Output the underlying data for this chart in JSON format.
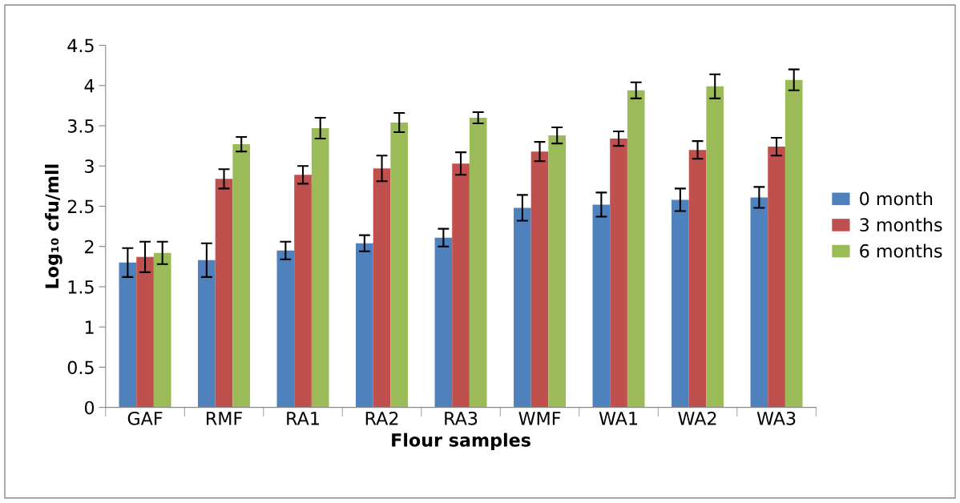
{
  "chart_data": {
    "type": "bar",
    "xlabel": "Flour samples",
    "ylabel": "Log₁₀ cfu/mll",
    "categories": [
      "GAF",
      "RMF",
      "RA1",
      "RA2",
      "RA3",
      "WMF",
      "WA1",
      "WA2",
      "WA3"
    ],
    "series": [
      {
        "name": "0 month",
        "color": "#4f81bd",
        "values": [
          1.8,
          1.83,
          1.95,
          2.04,
          2.11,
          2.48,
          2.52,
          2.58,
          2.61
        ],
        "errors": [
          0.18,
          0.21,
          0.11,
          0.1,
          0.11,
          0.16,
          0.15,
          0.14,
          0.13
        ]
      },
      {
        "name": "3 months",
        "color": "#c0504d",
        "values": [
          1.87,
          2.84,
          2.89,
          2.97,
          3.03,
          3.18,
          3.34,
          3.2,
          3.24
        ],
        "errors": [
          0.19,
          0.12,
          0.11,
          0.16,
          0.14,
          0.12,
          0.09,
          0.11,
          0.11
        ]
      },
      {
        "name": "6 months",
        "color": "#9bbb59",
        "values": [
          1.92,
          3.27,
          3.47,
          3.54,
          3.6,
          3.38,
          3.94,
          3.99,
          4.07
        ],
        "errors": [
          0.14,
          0.09,
          0.13,
          0.12,
          0.07,
          0.1,
          0.1,
          0.15,
          0.13
        ]
      }
    ],
    "ylim": [
      0,
      4.5
    ],
    "yticks": [
      0,
      0.5,
      1,
      1.5,
      2,
      2.5,
      3,
      3.5,
      4,
      4.5
    ],
    "grid": false,
    "legend": "right"
  }
}
